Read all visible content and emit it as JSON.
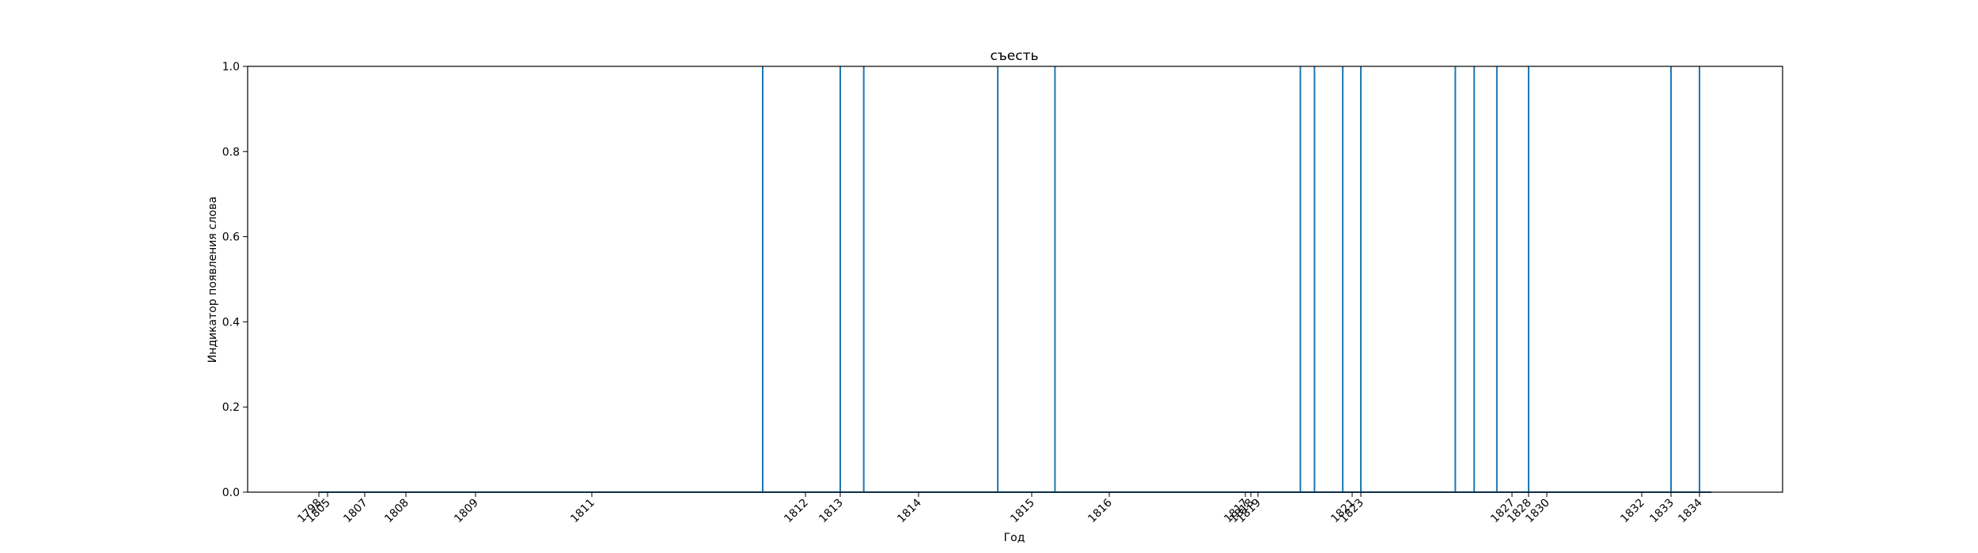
{
  "chart_data": {
    "type": "line",
    "title": "съесть",
    "xlabel": "Год",
    "ylabel": "Индикатор появления слова",
    "ylim": [
      0,
      1.0
    ],
    "yticks": [
      "0.0",
      "0.2",
      "0.4",
      "0.6",
      "0.8",
      "1.0"
    ],
    "xtick_labels": [
      "1798",
      "1805",
      "1807",
      "1808",
      "1809",
      "1811",
      "1812",
      "1813",
      "1814",
      "1815",
      "1816",
      "1817",
      "1818",
      "1819",
      "1821",
      "1823",
      "1827",
      "1828",
      "1830",
      "1832",
      "1833",
      "1834"
    ],
    "grid": false,
    "series": [
      {
        "color": "#1f77b4",
        "occurrences": [
          "1811.8",
          "1813.0",
          "1813.3",
          "1814.7",
          "1815.3",
          "1819.9",
          "1820.2",
          "1820.8",
          "1823.0",
          "1825.5",
          "1826.0",
          "1826.6",
          "1828.0",
          "1833.0",
          "1834.0"
        ]
      }
    ]
  }
}
